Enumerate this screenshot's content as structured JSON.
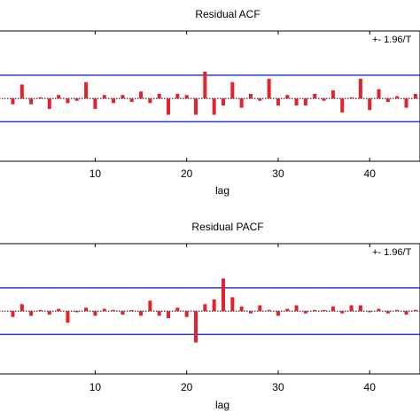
{
  "colors": {
    "bar": "#e8202a",
    "bound": "#2b3fbf",
    "zero": "#000000",
    "axis": "#000000"
  },
  "chart_data": [
    {
      "type": "bar",
      "title": "Residual ACF",
      "xlabel": "lag",
      "ylabel": "",
      "xlim": [
        -0.5,
        45.5
      ],
      "ylim": [
        -0.54,
        0.58
      ],
      "xticks": [
        10,
        20,
        30,
        40
      ],
      "bound_label": "+- 1.96/T",
      "bounds": [
        0.2,
        -0.2
      ],
      "x": [
        1,
        2,
        3,
        4,
        5,
        6,
        7,
        8,
        9,
        10,
        11,
        12,
        13,
        14,
        15,
        16,
        17,
        18,
        19,
        20,
        21,
        22,
        23,
        24,
        25,
        26,
        27,
        28,
        29,
        30,
        31,
        32,
        33,
        34,
        35,
        36,
        37,
        38,
        39,
        40,
        41,
        42,
        43,
        44,
        45
      ],
      "values": [
        -0.05,
        0.12,
        -0.05,
        0.01,
        -0.09,
        0.03,
        -0.04,
        -0.02,
        0.14,
        -0.09,
        0.03,
        -0.04,
        0.03,
        -0.03,
        0.06,
        -0.04,
        0.04,
        -0.14,
        0.04,
        0.03,
        -0.14,
        0.23,
        -0.14,
        -0.06,
        0.14,
        -0.08,
        0.04,
        -0.02,
        0.17,
        -0.06,
        0.03,
        -0.06,
        -0.06,
        0.04,
        -0.02,
        0.07,
        -0.12,
        0.01,
        0.17,
        -0.1,
        0.08,
        -0.03,
        0.02,
        -0.08,
        0.04
      ]
    },
    {
      "type": "bar",
      "title": "Residual PACF",
      "xlabel": "lag",
      "ylabel": "",
      "xlim": [
        -0.5,
        45.5
      ],
      "ylim": [
        -0.54,
        0.58
      ],
      "xticks": [
        10,
        20,
        30,
        40
      ],
      "bound_label": "+- 1.96/T",
      "bounds": [
        0.2,
        -0.2
      ],
      "x": [
        1,
        2,
        3,
        4,
        5,
        6,
        7,
        8,
        9,
        10,
        11,
        12,
        13,
        14,
        15,
        16,
        17,
        18,
        19,
        20,
        21,
        22,
        23,
        24,
        25,
        26,
        27,
        28,
        29,
        30,
        31,
        32,
        33,
        34,
        35,
        36,
        37,
        38,
        39,
        40,
        41,
        42,
        43,
        44,
        45
      ],
      "values": [
        -0.05,
        0.06,
        -0.04,
        0.01,
        -0.03,
        0.02,
        -0.1,
        -0.01,
        0.03,
        -0.04,
        0.02,
        0.01,
        -0.03,
        0.01,
        -0.04,
        0.09,
        -0.04,
        -0.06,
        0.03,
        -0.05,
        -0.27,
        0.06,
        0.1,
        0.28,
        0.12,
        0.04,
        -0.02,
        0.05,
        0.01,
        -0.04,
        0.02,
        0.05,
        -0.02,
        0.01,
        0.01,
        0.04,
        -0.02,
        0.05,
        0.05,
        -0.01,
        0.02,
        -0.02,
        0.01,
        -0.03,
        0.01
      ]
    }
  ]
}
